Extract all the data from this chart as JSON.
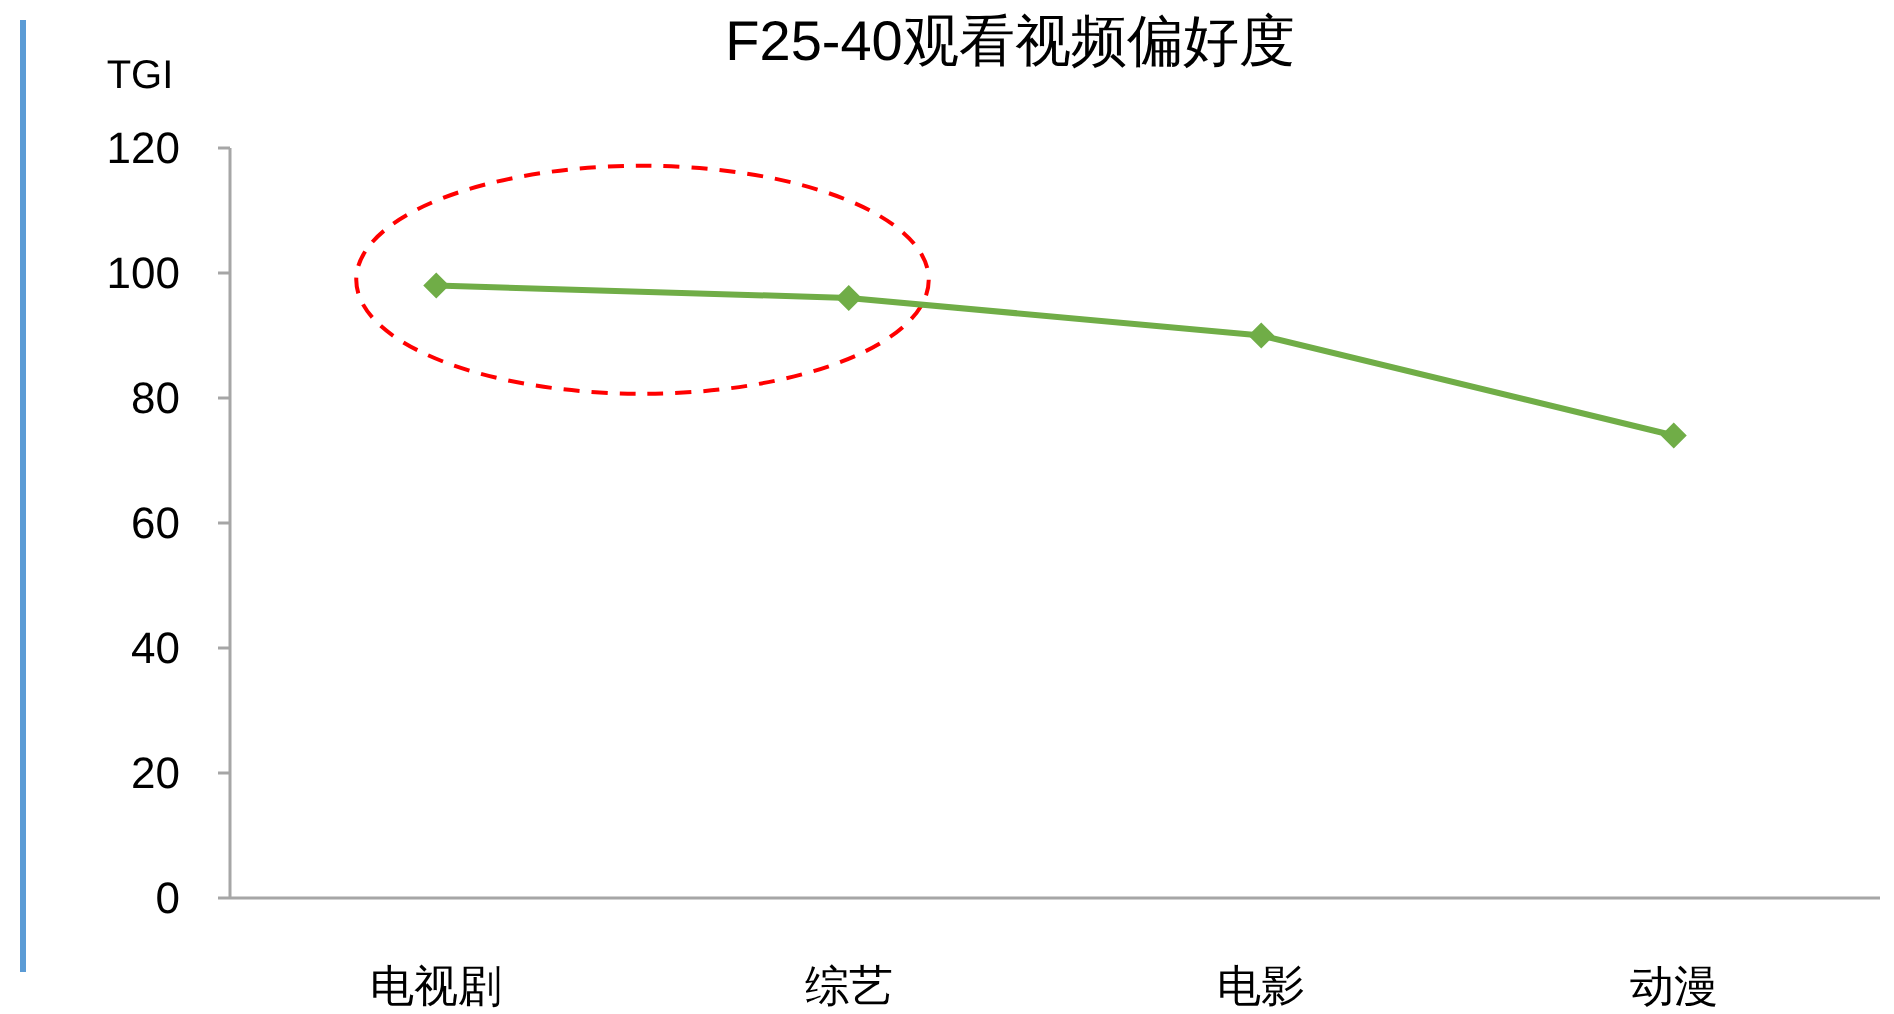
{
  "chart_data": {
    "type": "line",
    "title": "F25-40观看视频偏好度",
    "ylabel": "TGI",
    "categories": [
      "电视剧",
      "综艺",
      "电影",
      "动漫"
    ],
    "series": [
      {
        "color": "#70ad47",
        "values": [
          98,
          96,
          90,
          74
        ]
      }
    ],
    "ylim": [
      0,
      120
    ],
    "yticks": [
      0,
      20,
      40,
      60,
      80,
      100,
      120
    ],
    "grid": false,
    "marker": "diamond",
    "line_style": "solid"
  }
}
